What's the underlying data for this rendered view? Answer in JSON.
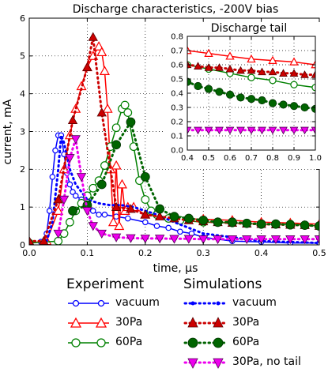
{
  "chart_data": [
    {
      "type": "line",
      "title": "Discharge characteristics, -200V bias",
      "xlabel": "time, μs",
      "ylabel": "current, mA",
      "xlim": [
        0.0,
        0.5
      ],
      "ylim": [
        0,
        6
      ],
      "xticks": [
        "0.0",
        "0.1",
        "0.2",
        "0.3",
        "0.4",
        "0.5"
      ],
      "yticks": [
        "0",
        "1",
        "2",
        "3",
        "4",
        "5",
        "6"
      ],
      "grid": true,
      "series": [
        {
          "name": "vacuum",
          "group": "Experiment",
          "color": "#0000ff",
          "style": "solid",
          "marker": "circle-open",
          "x": [
            0.0,
            0.02,
            0.03,
            0.035,
            0.04,
            0.045,
            0.05,
            0.055,
            0.06,
            0.065,
            0.07,
            0.075,
            0.08,
            0.09,
            0.1,
            0.11,
            0.12,
            0.13,
            0.15,
            0.17,
            0.2,
            0.22,
            0.24,
            0.26,
            0.28,
            0.3,
            0.35,
            0.4,
            0.45,
            0.5
          ],
          "values": [
            0.05,
            0.08,
            0.3,
            0.9,
            1.8,
            2.5,
            2.9,
            2.9,
            2.4,
            1.9,
            1.6,
            1.4,
            1.3,
            1.2,
            1.0,
            0.9,
            0.8,
            0.8,
            0.75,
            0.7,
            0.6,
            0.5,
            0.45,
            0.35,
            0.3,
            0.2,
            0.1,
            0.08,
            0.05,
            0.05
          ]
        },
        {
          "name": "30Pa",
          "group": "Experiment",
          "color": "#ff0000",
          "style": "solid",
          "marker": "triangle-open",
          "x": [
            0.0,
            0.03,
            0.05,
            0.06,
            0.07,
            0.08,
            0.09,
            0.1,
            0.11,
            0.12,
            0.125,
            0.13,
            0.135,
            0.14,
            0.145,
            0.15,
            0.155,
            0.16,
            0.165,
            0.17,
            0.18,
            0.2,
            0.25,
            0.3,
            0.35,
            0.4,
            0.45,
            0.5
          ],
          "values": [
            0.05,
            0.1,
            0.9,
            2.0,
            2.9,
            3.6,
            4.2,
            4.7,
            5.0,
            5.25,
            5.1,
            4.6,
            3.6,
            2.0,
            0.6,
            2.1,
            0.5,
            1.6,
            0.9,
            1.0,
            1.0,
            0.8,
            0.7,
            0.68,
            0.65,
            0.6,
            0.58,
            0.55
          ]
        },
        {
          "name": "60Pa",
          "group": "Experiment",
          "color": "#008000",
          "style": "solid",
          "marker": "circle-open",
          "x": [
            0.0,
            0.05,
            0.06,
            0.07,
            0.08,
            0.09,
            0.1,
            0.11,
            0.12,
            0.13,
            0.14,
            0.15,
            0.16,
            0.165,
            0.17,
            0.18,
            0.19,
            0.2,
            0.21,
            0.22,
            0.24,
            0.26,
            0.3,
            0.35,
            0.4,
            0.45,
            0.5
          ],
          "values": [
            0.05,
            0.1,
            0.3,
            0.6,
            0.9,
            1.1,
            1.3,
            1.5,
            1.7,
            2.1,
            2.6,
            3.1,
            3.6,
            3.7,
            3.5,
            2.6,
            1.7,
            1.2,
            0.9,
            0.8,
            0.7,
            0.65,
            0.6,
            0.58,
            0.55,
            0.55,
            0.5
          ]
        },
        {
          "name": "vacuum",
          "group": "Simulations",
          "color": "#0000ff",
          "style": "dotted",
          "marker": "none",
          "x": [
            0.03,
            0.04,
            0.05,
            0.055,
            0.06,
            0.07,
            0.08,
            0.09,
            0.1,
            0.12,
            0.14,
            0.16,
            0.18,
            0.2,
            0.22,
            0.25,
            0.3,
            0.4,
            0.5
          ],
          "values": [
            0.1,
            0.6,
            2.0,
            2.9,
            2.7,
            2.0,
            1.6,
            1.4,
            1.2,
            1.1,
            1.05,
            1.05,
            1.0,
            0.9,
            0.8,
            0.6,
            0.3,
            0.1,
            0.05
          ]
        },
        {
          "name": "30Pa",
          "group": "Simulations",
          "color": "#cc0000",
          "style": "dotted",
          "marker": "triangle-filled",
          "x": [
            0.0,
            0.025,
            0.05,
            0.075,
            0.1,
            0.11,
            0.125,
            0.15,
            0.175,
            0.2,
            0.225,
            0.25,
            0.275,
            0.3,
            0.325,
            0.35,
            0.375,
            0.4,
            0.425,
            0.45,
            0.475,
            0.5
          ],
          "values": [
            0.1,
            0.1,
            1.2,
            3.3,
            4.7,
            5.5,
            3.5,
            1.0,
            0.95,
            0.8,
            0.75,
            0.7,
            0.65,
            0.62,
            0.6,
            0.58,
            0.56,
            0.55,
            0.54,
            0.53,
            0.52,
            0.5
          ]
        },
        {
          "name": "60Pa",
          "group": "Simulations",
          "color": "#006400",
          "style": "dotted",
          "marker": "circle-filled",
          "x": [
            0.075,
            0.1,
            0.125,
            0.15,
            0.175,
            0.2,
            0.225,
            0.25,
            0.275,
            0.3,
            0.325,
            0.35,
            0.375,
            0.4,
            0.425,
            0.45,
            0.475,
            0.5
          ],
          "values": [
            0.9,
            1.05,
            1.6,
            2.65,
            3.25,
            1.8,
            0.95,
            0.75,
            0.7,
            0.65,
            0.6,
            0.6,
            0.57,
            0.55,
            0.55,
            0.53,
            0.52,
            0.5
          ]
        },
        {
          "name": "30Pa, no tail",
          "group": "Simulations",
          "color": "#ee00ee",
          "style": "dotted",
          "marker": "triangle-down-filled",
          "x": [
            0.05,
            0.06,
            0.07,
            0.08,
            0.09,
            0.1,
            0.11,
            0.125,
            0.15,
            0.175,
            0.2,
            0.225,
            0.25,
            0.275,
            0.3,
            0.325,
            0.35,
            0.375,
            0.4,
            0.425,
            0.45,
            0.475,
            0.5
          ],
          "values": [
            0.3,
            1.2,
            2.3,
            2.8,
            1.8,
            0.9,
            0.5,
            0.3,
            0.2,
            0.18,
            0.17,
            0.17,
            0.16,
            0.16,
            0.15,
            0.15,
            0.15,
            0.15,
            0.15,
            0.15,
            0.15,
            0.15,
            0.15
          ]
        }
      ]
    },
    {
      "type": "line",
      "title": "Discharge tail",
      "xlim": [
        0.4,
        1.0
      ],
      "ylim": [
        0.0,
        0.8
      ],
      "xticks": [
        "0.4",
        "0.5",
        "0.6",
        "0.7",
        "0.8",
        "0.9",
        "1.0"
      ],
      "yticks": [
        "0.0",
        "0.1",
        "0.2",
        "0.3",
        "0.4",
        "0.5",
        "0.6",
        "0.7",
        "0.8"
      ],
      "grid": true,
      "series": [
        {
          "name": "30Pa",
          "group": "Experiment",
          "color": "#ff0000",
          "style": "solid",
          "marker": "triangle-open",
          "x": [
            0.4,
            0.5,
            0.6,
            0.7,
            0.8,
            0.9,
            1.0
          ],
          "values": [
            0.7,
            0.68,
            0.66,
            0.64,
            0.63,
            0.62,
            0.6
          ]
        },
        {
          "name": "60Pa",
          "group": "Experiment",
          "color": "#008000",
          "style": "solid",
          "marker": "circle-open",
          "x": [
            0.4,
            0.5,
            0.6,
            0.7,
            0.8,
            0.9,
            1.0
          ],
          "values": [
            0.6,
            0.57,
            0.54,
            0.51,
            0.49,
            0.46,
            0.44
          ]
        },
        {
          "name": "30Pa",
          "group": "Simulations",
          "color": "#cc0000",
          "style": "dotted",
          "marker": "triangle-filled",
          "x": [
            0.4,
            0.45,
            0.5,
            0.55,
            0.6,
            0.65,
            0.7,
            0.75,
            0.8,
            0.85,
            0.9,
            0.95,
            1.0
          ],
          "values": [
            0.6,
            0.59,
            0.58,
            0.58,
            0.57,
            0.56,
            0.56,
            0.55,
            0.55,
            0.54,
            0.54,
            0.53,
            0.53
          ]
        },
        {
          "name": "60Pa",
          "group": "Simulations",
          "color": "#006400",
          "style": "dotted",
          "marker": "circle-filled",
          "x": [
            0.4,
            0.45,
            0.5,
            0.55,
            0.6,
            0.65,
            0.7,
            0.75,
            0.8,
            0.85,
            0.9,
            0.95,
            1.0
          ],
          "values": [
            0.48,
            0.45,
            0.43,
            0.41,
            0.39,
            0.37,
            0.36,
            0.35,
            0.33,
            0.32,
            0.31,
            0.3,
            0.29
          ]
        },
        {
          "name": "30Pa, no tail",
          "group": "Simulations",
          "color": "#ee00ee",
          "style": "dotted",
          "marker": "triangle-down-filled",
          "x": [
            0.4,
            0.45,
            0.5,
            0.55,
            0.6,
            0.65,
            0.7,
            0.75,
            0.8,
            0.85,
            0.9,
            0.95,
            1.0
          ],
          "values": [
            0.14,
            0.14,
            0.14,
            0.14,
            0.14,
            0.14,
            0.14,
            0.14,
            0.14,
            0.14,
            0.14,
            0.14,
            0.14
          ]
        }
      ]
    }
  ],
  "legend": {
    "experiment_heading": "Experiment",
    "simulations_heading": "Simulations",
    "experiment": [
      "vacuum",
      "30Pa",
      "60Pa"
    ],
    "simulations": [
      "vacuum",
      "30Pa",
      "60Pa",
      "30Pa, no tail"
    ]
  }
}
